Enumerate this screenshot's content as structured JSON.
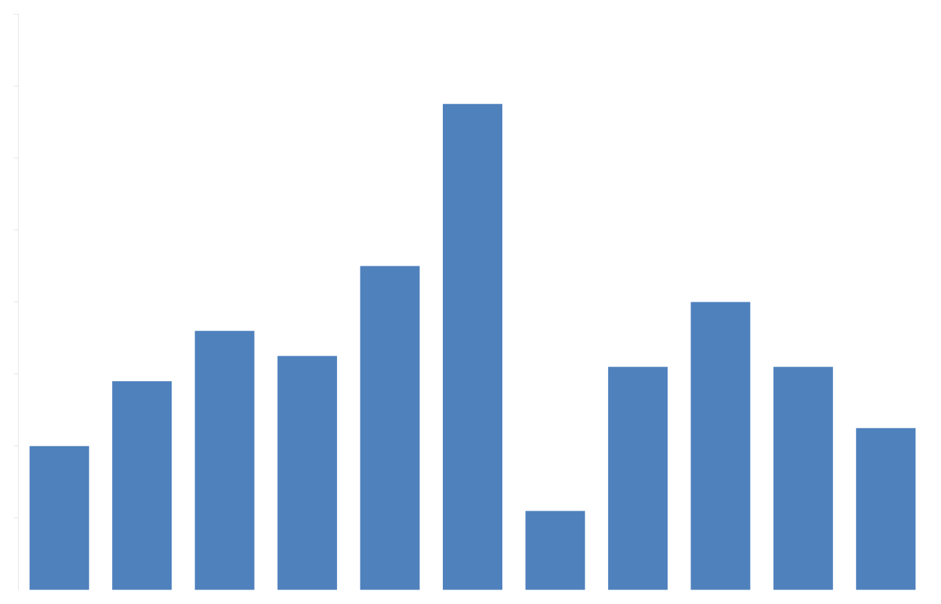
{
  "chart_data": {
    "type": "bar",
    "categories": [
      null,
      null,
      null,
      null,
      null,
      null,
      null,
      null,
      null,
      null,
      null
    ],
    "values": [
      4.0,
      5.8,
      7.2,
      6.5,
      9.0,
      13.5,
      2.2,
      6.2,
      8.0,
      6.2,
      4.5
    ],
    "color": "#4F81BD",
    "ylim": [
      0,
      16
    ],
    "yticks": [
      0,
      2,
      4,
      6,
      8,
      10,
      12,
      14,
      16
    ],
    "grid": false,
    "tick_labels": false
  }
}
